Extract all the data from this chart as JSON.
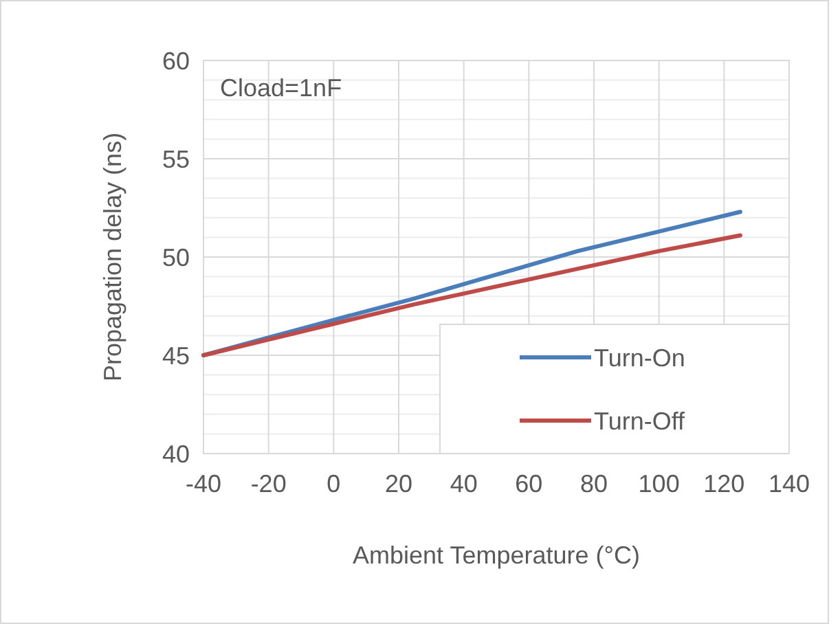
{
  "chart_data": {
    "type": "line",
    "xlabel": "Ambient Temperature (°C)",
    "ylabel": "Propagation delay (ns)",
    "annotations": [
      "Cload=1nF"
    ],
    "x": [
      -40,
      -20,
      0,
      25,
      50,
      75,
      100,
      125
    ],
    "series": [
      {
        "name": "Turn-On",
        "color": "#4a7ebb",
        "values": [
          45.0,
          45.9,
          46.8,
          47.9,
          49.1,
          50.3,
          51.3,
          52.3
        ]
      },
      {
        "name": "Turn-Off",
        "color": "#be4b48",
        "values": [
          45.0,
          45.8,
          46.6,
          47.6,
          48.5,
          49.4,
          50.3,
          51.1
        ]
      }
    ],
    "xlim": [
      -40,
      140
    ],
    "xticks": [
      -40,
      -20,
      0,
      20,
      40,
      60,
      80,
      100,
      120,
      140
    ],
    "ylim": [
      40,
      60
    ],
    "yticks": [
      40,
      45,
      50,
      55,
      60
    ],
    "grid": true,
    "legend": "bottom right",
    "marker": "none",
    "line_style": "solid"
  }
}
